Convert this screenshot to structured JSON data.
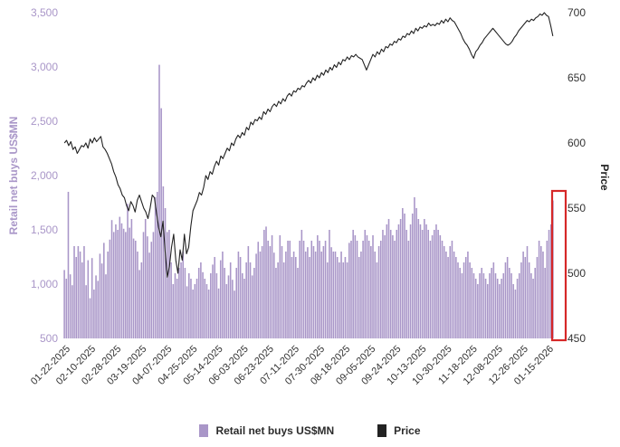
{
  "chart_data": {
    "type": "bar",
    "title": "",
    "ylabel_left": "Retail net buys US$MN",
    "ylabel_right": "Price",
    "ylim_left": [
      500,
      3500
    ],
    "yticks_left": [
      "500",
      "1,000",
      "1,500",
      "2,000",
      "2,500",
      "3,000",
      "3,500"
    ],
    "ylim_right": [
      450,
      700
    ],
    "yticks_right": [
      "450",
      "500",
      "550",
      "600",
      "650",
      "700"
    ],
    "x_tick_labels": [
      "01-22-2025",
      "02-10-2025",
      "02-28-2025",
      "03-19-2025",
      "04-07-2025",
      "04-25-2025",
      "05-14-2025",
      "06-03-2025",
      "06-23-2025",
      "07-11-2025",
      "07-30-2025",
      "08-18-2025",
      "09-05-2025",
      "09-24-2025",
      "10-13-2025",
      "10-30-2025",
      "11-18-2025",
      "12-08-2025",
      "12-26-2025",
      "01-15-2026"
    ],
    "legend_position": "bottom-center",
    "grid": false,
    "highlight": "latest observations boxed in red",
    "colors": {
      "bars": "#a996c8",
      "price": "#222222",
      "left_axis": "#a996c8",
      "highlight": "#d62828"
    },
    "series": [
      {
        "name": "Retail net buys US$MN",
        "type": "bar",
        "axis": "left",
        "values": [
          1130,
          1050,
          1850,
          1090,
          990,
          1350,
          1250,
          1350,
          1300,
          1200,
          1350,
          990,
          1220,
          870,
          1240,
          950,
          1080,
          1030,
          1280,
          1190,
          1380,
          1090,
          1300,
          1410,
          1590,
          1480,
          1550,
          1500,
          1620,
          1560,
          1510,
          1480,
          1740,
          1520,
          1600,
          1420,
          1400,
          1300,
          1130,
          1200,
          1480,
          1600,
          1440,
          1290,
          1390,
          1480,
          1800,
          1850,
          3020,
          2620,
          1900,
          1700,
          1480,
          1500,
          1200,
          1000,
          1100,
          1050,
          1150,
          1200,
          1300,
          1150,
          980,
          1100,
          1050,
          950,
          1000,
          1050,
          1150,
          1200,
          1110,
          1050,
          1000,
          950,
          1100,
          1180,
          1250,
          1100,
          960,
          1220,
          1300,
          1150,
          1000,
          1080,
          1200,
          1040,
          940,
          1150,
          1300,
          1250,
          1100,
          1050,
          1200,
          1350,
          1200,
          1080,
          1150,
          1280,
          1390,
          1300,
          1350,
          1500,
          1530,
          1400,
          1350,
          1450,
          1290,
          1150,
          1200,
          1450,
          1350,
          1200,
          1300,
          1400,
          1400,
          1250,
          1300,
          1250,
          1150,
          1400,
          1500,
          1400,
          1300,
          1340,
          1250,
          1400,
          1350,
          1300,
          1450,
          1400,
          1300,
          1350,
          1400,
          1200,
          1500,
          1340,
          1300,
          1300,
          1250,
          1200,
          1300,
          1200,
          1250,
          1200,
          1380,
          1400,
          1500,
          1450,
          1400,
          1250,
          1300,
          1400,
          1500,
          1450,
          1400,
          1350,
          1450,
          1300,
          1200,
          1350,
          1400,
          1500,
          1450,
          1550,
          1600,
          1500,
          1450,
          1400,
          1500,
          1550,
          1600,
          1700,
          1650,
          1500,
          1400,
          1550,
          1650,
          1800,
          1700,
          1600,
          1550,
          1500,
          1600,
          1550,
          1500,
          1400,
          1450,
          1500,
          1550,
          1500,
          1450,
          1400,
          1350,
          1300,
          1250,
          1350,
          1400,
          1300,
          1250,
          1200,
          1150,
          1100,
          1200,
          1250,
          1300,
          1200,
          1150,
          1100,
          1050,
          1000,
          1100,
          1150,
          1100,
          1050,
          1000,
          1100,
          1150,
          1200,
          1100,
          1050,
          1000,
          1050,
          1100,
          1200,
          1250,
          1150,
          1100,
          1000,
          950,
          1050,
          1100,
          1200,
          1300,
          1250,
          1350,
          1200,
          1100,
          1050,
          1150,
          1250,
          1400,
          1350,
          1300,
          1150,
          1400,
          1500,
          1550,
          1770
        ]
      },
      {
        "name": "Price",
        "type": "line",
        "axis": "right",
        "values": [
          600,
          602,
          598,
          601,
          595,
          597,
          592,
          595,
          598,
          597,
          600,
          596,
          603,
          600,
          604,
          601,
          603,
          605,
          597,
          595,
          592,
          588,
          584,
          578,
          574,
          568,
          565,
          560,
          558,
          552,
          548,
          555,
          552,
          547,
          556,
          560,
          555,
          550,
          547,
          542,
          550,
          560,
          558,
          546,
          535,
          528,
          540,
          517,
          497,
          505,
          520,
          530,
          510,
          500,
          518,
          510,
          530,
          515,
          520,
          536,
          548,
          552,
          556,
          562,
          560,
          566,
          575,
          572,
          578,
          576,
          582,
          586,
          583,
          590,
          588,
          592,
          596,
          594,
          600,
          598,
          603,
          606,
          604,
          608,
          606,
          612,
          610,
          616,
          614,
          618,
          617,
          620,
          618,
          624,
          622,
          626,
          624,
          628,
          630,
          628,
          632,
          630,
          634,
          632,
          636,
          638,
          636,
          640,
          639,
          642,
          641,
          644,
          643,
          646,
          648,
          646,
          650,
          648,
          652,
          650,
          654,
          652,
          656,
          654,
          658,
          656,
          660,
          658,
          662,
          660,
          664,
          663,
          666,
          664,
          667,
          666,
          668,
          666,
          665,
          664,
          660,
          656,
          660,
          664,
          668,
          666,
          670,
          668,
          672,
          670,
          674,
          673,
          676,
          675,
          678,
          677,
          680,
          679,
          682,
          681,
          684,
          683,
          686,
          684,
          688,
          686,
          689,
          688,
          690,
          689,
          692,
          690,
          691,
          690,
          692,
          691,
          694,
          692,
          695,
          693,
          696,
          694,
          693,
          690,
          687,
          684,
          680,
          677,
          675,
          672,
          668,
          665,
          670,
          672,
          675,
          677,
          680,
          682,
          684,
          686,
          688,
          686,
          684,
          682,
          680,
          678,
          676,
          675,
          676,
          678,
          681,
          683,
          686,
          688,
          690,
          692,
          694,
          693,
          695,
          694,
          696,
          697,
          699,
          698,
          700,
          698,
          697,
          690,
          682
        ]
      }
    ]
  }
}
